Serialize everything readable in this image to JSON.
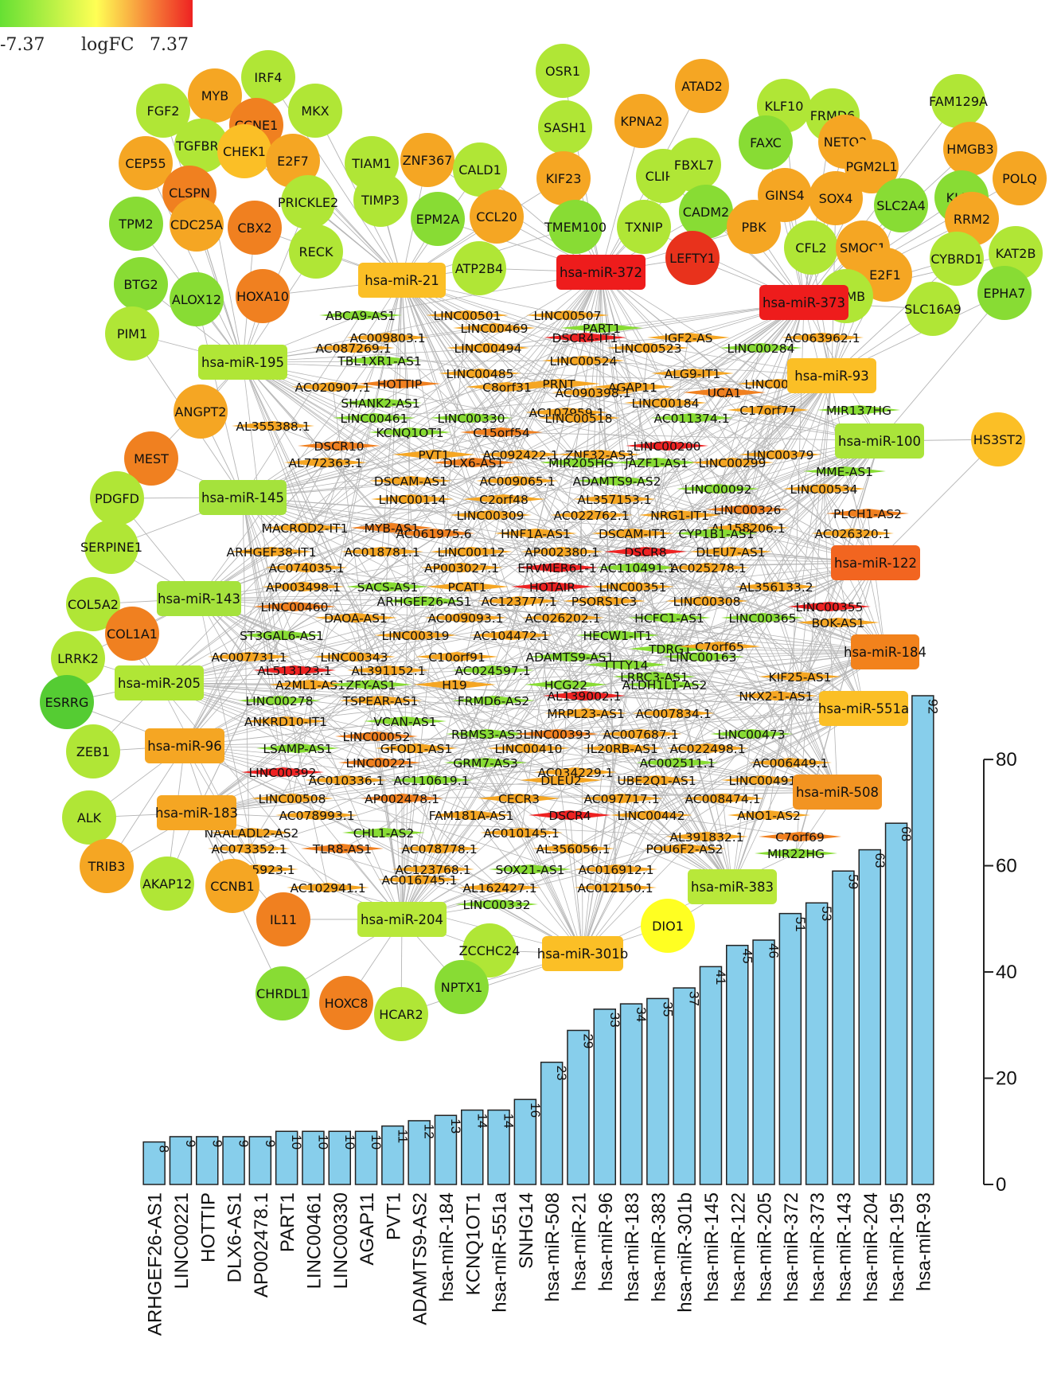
{
  "legend": {
    "min": "-7.37",
    "title": "logFC",
    "max": "7.37",
    "colors": [
      "#66e033",
      "#ffff55",
      "#ee2222"
    ]
  },
  "mirnas": [
    {
      "label": "hsa-miR-21",
      "color": "#fbbf26"
    },
    {
      "label": "hsa-miR-372",
      "color": "#ee1c1c"
    },
    {
      "label": "hsa-miR-373",
      "color": "#ee1c1c"
    },
    {
      "label": "hsa-miR-195",
      "color": "#b0e636"
    },
    {
      "label": "hsa-miR-93",
      "color": "#fbbf26"
    },
    {
      "label": "hsa-miR-100",
      "color": "#aae43a"
    },
    {
      "label": "hsa-miR-145",
      "color": "#a5e23c"
    },
    {
      "label": "hsa-miR-122",
      "color": "#f26520"
    },
    {
      "label": "hsa-miR-143",
      "color": "#a5e23c"
    },
    {
      "label": "hsa-miR-184",
      "color": "#f2821c"
    },
    {
      "label": "hsa-miR-205",
      "color": "#b0e636"
    },
    {
      "label": "hsa-miR-551a",
      "color": "#fbbf26"
    },
    {
      "label": "hsa-miR-96",
      "color": "#f5a623"
    },
    {
      "label": "hsa-miR-508",
      "color": "#f29422"
    },
    {
      "label": "hsa-miR-183",
      "color": "#f5a623"
    },
    {
      "label": "hsa-miR-383",
      "color": "#b8e83a"
    },
    {
      "label": "hsa-miR-204",
      "color": "#b8e83a"
    },
    {
      "label": "hsa-miR-301b",
      "color": "#fbbf26"
    }
  ],
  "genes": [
    {
      "label": "IRF4",
      "color": "#b0e636"
    },
    {
      "label": "MYB",
      "color": "#f5a623"
    },
    {
      "label": "FGF2",
      "color": "#b0e636"
    },
    {
      "label": "MKX",
      "color": "#b0e636"
    },
    {
      "label": "CCNE1",
      "color": "#f08020"
    },
    {
      "label": "TGFBR3",
      "color": "#b0e636"
    },
    {
      "label": "CEP55",
      "color": "#f5a623"
    },
    {
      "label": "CHEK1",
      "color": "#fbbf26"
    },
    {
      "label": "E2F7",
      "color": "#f5a623"
    },
    {
      "label": "CLSPN",
      "color": "#f08020"
    },
    {
      "label": "TPM2",
      "color": "#88dc34"
    },
    {
      "label": "CDC25A",
      "color": "#f5a623"
    },
    {
      "label": "CBX2",
      "color": "#f08020"
    },
    {
      "label": "BTG2",
      "color": "#88dc34"
    },
    {
      "label": "ALOX12",
      "color": "#88dc34"
    },
    {
      "label": "HOXA10",
      "color": "#f08020"
    },
    {
      "label": "PIM1",
      "color": "#b0e636"
    },
    {
      "label": "RECK",
      "color": "#b0e636"
    },
    {
      "label": "PRICKLE2",
      "color": "#b0e636"
    },
    {
      "label": "TIAM1",
      "color": "#b0e636"
    },
    {
      "label": "ZNF367",
      "color": "#f5a623"
    },
    {
      "label": "TIMP3",
      "color": "#b0e636"
    },
    {
      "label": "CALD1",
      "color": "#b0e636"
    },
    {
      "label": "EPM2A",
      "color": "#88dc34"
    },
    {
      "label": "CCL20",
      "color": "#f5a623"
    },
    {
      "label": "ATP2B4",
      "color": "#b0e636"
    },
    {
      "label": "OSR1",
      "color": "#b0e636"
    },
    {
      "label": "SASH1",
      "color": "#b0e636"
    },
    {
      "label": "KIF23",
      "color": "#f5a623"
    },
    {
      "label": "TMEM100",
      "color": "#88dc34"
    },
    {
      "label": "KPNA2",
      "color": "#f5a623"
    },
    {
      "label": "ATAD2",
      "color": "#f5a623"
    },
    {
      "label": "CLIP4",
      "color": "#b0e636"
    },
    {
      "label": "FBXL7",
      "color": "#b0e636"
    },
    {
      "label": "TXNIP",
      "color": "#b0e636"
    },
    {
      "label": "CADM2",
      "color": "#88dc34"
    },
    {
      "label": "LEFTY1",
      "color": "#e8321c"
    },
    {
      "label": "KLF10",
      "color": "#b0e636"
    },
    {
      "label": "FRMD6",
      "color": "#b0e636"
    },
    {
      "label": "FAM129A",
      "color": "#b0e636"
    },
    {
      "label": "FAXC",
      "color": "#88dc34"
    },
    {
      "label": "NETO2",
      "color": "#f5a623"
    },
    {
      "label": "HMGB3",
      "color": "#f5a623"
    },
    {
      "label": "PGM2L1",
      "color": "#f5a623"
    },
    {
      "label": "KLF9",
      "color": "#88dc34"
    },
    {
      "label": "POLQ",
      "color": "#f5a623"
    },
    {
      "label": "GINS4",
      "color": "#f5a623"
    },
    {
      "label": "SOX4",
      "color": "#f5a623"
    },
    {
      "label": "SLC2A4",
      "color": "#88dc34"
    },
    {
      "label": "RRM2",
      "color": "#f5a623"
    },
    {
      "label": "PBK",
      "color": "#f5a623"
    },
    {
      "label": "CFL2",
      "color": "#b0e636"
    },
    {
      "label": "SMOC1",
      "color": "#f5a623"
    },
    {
      "label": "CYBRD1",
      "color": "#b0e636"
    },
    {
      "label": "KAT2B",
      "color": "#b0e636"
    },
    {
      "label": "EPHA7",
      "color": "#88dc34"
    },
    {
      "label": "E2F1",
      "color": "#f5a623"
    },
    {
      "label": "RGMB",
      "color": "#b0e636"
    },
    {
      "label": "SLC16A9",
      "color": "#b0e636"
    },
    {
      "label": "HS3ST2",
      "color": "#fbbf26"
    },
    {
      "label": "ANGPT2",
      "color": "#f5a623"
    },
    {
      "label": "MEST",
      "color": "#f08020"
    },
    {
      "label": "PDGFD",
      "color": "#b0e636"
    },
    {
      "label": "SERPINE1",
      "color": "#b0e636"
    },
    {
      "label": "COL5A2",
      "color": "#b0e636"
    },
    {
      "label": "COL1A1",
      "color": "#f08020"
    },
    {
      "label": "LRRK2",
      "color": "#b0e636"
    },
    {
      "label": "ESRRG",
      "color": "#55cc33"
    },
    {
      "label": "ZEB1",
      "color": "#b0e636"
    },
    {
      "label": "ALK",
      "color": "#b0e636"
    },
    {
      "label": "TRIB3",
      "color": "#f5a623"
    },
    {
      "label": "AKAP12",
      "color": "#b0e636"
    },
    {
      "label": "CCNB1",
      "color": "#f5a623"
    },
    {
      "label": "IL11",
      "color": "#f08020"
    },
    {
      "label": "DIO1",
      "color": "#ffff22"
    },
    {
      "label": "ZCCHC24",
      "color": "#b0e636"
    },
    {
      "label": "CHRDL1",
      "color": "#88dc34"
    },
    {
      "label": "HOXC8",
      "color": "#f08020"
    },
    {
      "label": "HCAR2",
      "color": "#b0e636"
    },
    {
      "label": "NPTX1",
      "color": "#88dc34"
    }
  ],
  "lncrnas": [
    {
      "label": "ABCA9-AS1",
      "color": "#88dc34"
    },
    {
      "label": "LINC00501",
      "color": "#f5a623"
    },
    {
      "label": "LINC00507",
      "color": "#f5a623"
    },
    {
      "label": "LINC00469",
      "color": "#f5a623"
    },
    {
      "label": "PART1",
      "color": "#88dc34"
    },
    {
      "label": "AC009803.1",
      "color": "#f5a623"
    },
    {
      "label": "DSCR4-IT1",
      "color": "#ee2222"
    },
    {
      "label": "IGF2-AS",
      "color": "#f5a623"
    },
    {
      "label": "AC063962.1",
      "color": "#f5a623"
    },
    {
      "label": "AC087269.1",
      "color": "#f5a623"
    },
    {
      "label": "LINC00494",
      "color": "#f5a623"
    },
    {
      "label": "LINC00523",
      "color": "#f5a623"
    },
    {
      "label": "LINC00284",
      "color": "#88dc34"
    },
    {
      "label": "TBL1XR1-AS1",
      "color": "#88dc34"
    },
    {
      "label": "LINC00524",
      "color": "#f5a623"
    },
    {
      "label": "LINC00485",
      "color": "#f5a623"
    },
    {
      "label": "ALG9-IT1",
      "color": "#f5a623"
    },
    {
      "label": "HOTTIP",
      "color": "#f08020"
    },
    {
      "label": "PRNT",
      "color": "#f5a623"
    },
    {
      "label": "LINC00454",
      "color": "#f5a623"
    },
    {
      "label": "AC020907.1",
      "color": "#f5a623"
    },
    {
      "label": "C8orf31",
      "color": "#f5a623"
    },
    {
      "label": "AGAP11",
      "color": "#f5a623"
    },
    {
      "label": "AC090398.1",
      "color": "#f5a623"
    },
    {
      "label": "UCA1",
      "color": "#f08020"
    },
    {
      "label": "SHANK2-AS1",
      "color": "#88dc34"
    },
    {
      "label": "LINC00184",
      "color": "#f5a623"
    },
    {
      "label": "C17orf77",
      "color": "#f5a623"
    },
    {
      "label": "MIR137HG",
      "color": "#88dc34"
    },
    {
      "label": "AC107959.1",
      "color": "#f5a623"
    },
    {
      "label": "LINC00461",
      "color": "#88dc34"
    },
    {
      "label": "LINC00330",
      "color": "#88dc34"
    },
    {
      "label": "LINC00518",
      "color": "#f5a623"
    },
    {
      "label": "AC011374.1",
      "color": "#88dc34"
    },
    {
      "label": "AL355388.1",
      "color": "#f5a623"
    },
    {
      "label": "KCNQ1OT1",
      "color": "#88dc34"
    },
    {
      "label": "C15orf54",
      "color": "#f08020"
    },
    {
      "label": "DSCR10",
      "color": "#f08020"
    },
    {
      "label": "LINC00200",
      "color": "#ee2222"
    },
    {
      "label": "PVT1",
      "color": "#f5a623"
    },
    {
      "label": "AC092422.1",
      "color": "#f5a623"
    },
    {
      "label": "ZNF32-AS3",
      "color": "#f5a623"
    },
    {
      "label": "LINC00379",
      "color": "#f5a623"
    },
    {
      "label": "AL772363.1",
      "color": "#f5a623"
    },
    {
      "label": "DLX6-AS1",
      "color": "#f08020"
    },
    {
      "label": "MIR205HG",
      "color": "#88dc34"
    },
    {
      "label": "JAZF1-AS1",
      "color": "#88dc34"
    },
    {
      "label": "LINC00299",
      "color": "#f5a623"
    },
    {
      "label": "MME-AS1",
      "color": "#88dc34"
    },
    {
      "label": "DSCAM-AS1",
      "color": "#f5a623"
    },
    {
      "label": "AC009065.1",
      "color": "#f5a623"
    },
    {
      "label": "ADAMTS9-AS2",
      "color": "#88dc34"
    },
    {
      "label": "LINC00092",
      "color": "#88dc34"
    },
    {
      "label": "LINC00534",
      "color": "#f5a623"
    },
    {
      "label": "LINC00114",
      "color": "#f5a623"
    },
    {
      "label": "C2orf48",
      "color": "#f5a623"
    },
    {
      "label": "AL357153.1",
      "color": "#f5a623"
    },
    {
      "label": "LINC00326",
      "color": "#f08020"
    },
    {
      "label": "LINC00309",
      "color": "#f5a623"
    },
    {
      "label": "AC022762.1",
      "color": "#f5a623"
    },
    {
      "label": "NRG1-IT1",
      "color": "#f5a623"
    },
    {
      "label": "PLCH1-AS2",
      "color": "#f08020"
    },
    {
      "label": "MACROD2-IT1",
      "color": "#f5a623"
    },
    {
      "label": "MYB-AS1",
      "color": "#f08020"
    },
    {
      "label": "AL158206.1",
      "color": "#f5a623"
    },
    {
      "label": "AC061975.6",
      "color": "#f08020"
    },
    {
      "label": "HNF1A-AS1",
      "color": "#f5a623"
    },
    {
      "label": "DSCAM-IT1",
      "color": "#f5a623"
    },
    {
      "label": "CYP1B1-AS1",
      "color": "#88dc34"
    },
    {
      "label": "AC026320.1",
      "color": "#f5a623"
    },
    {
      "label": "ARHGEF38-IT1",
      "color": "#f5a623"
    },
    {
      "label": "AC018781.1",
      "color": "#f5a623"
    },
    {
      "label": "LINC00112",
      "color": "#f5a623"
    },
    {
      "label": "AP002380.1",
      "color": "#f5a623"
    },
    {
      "label": "DSCR8",
      "color": "#ee2222"
    },
    {
      "label": "DLEU7-AS1",
      "color": "#f5a623"
    },
    {
      "label": "AC074035.1",
      "color": "#f5a623"
    },
    {
      "label": "AP003027.1",
      "color": "#f5a623"
    },
    {
      "label": "ERVMER61-1",
      "color": "#ee2222"
    },
    {
      "label": "AC110491.1",
      "color": "#88dc34"
    },
    {
      "label": "AC025278.1",
      "color": "#f5a623"
    },
    {
      "label": "AP003498.1",
      "color": "#f5a623"
    },
    {
      "label": "SACS-AS1",
      "color": "#88dc34"
    },
    {
      "label": "PCAT1",
      "color": "#f5a623"
    },
    {
      "label": "HOTAIR",
      "color": "#ee2222"
    },
    {
      "label": "LINC00351",
      "color": "#f5a623"
    },
    {
      "label": "AL356133.2",
      "color": "#f5a623"
    },
    {
      "label": "ARHGEF26-AS1",
      "color": "#88dc34"
    },
    {
      "label": "AC123777.1",
      "color": "#f5a623"
    },
    {
      "label": "PSORS1C3",
      "color": "#f5a623"
    },
    {
      "label": "LINC00308",
      "color": "#f5a623"
    },
    {
      "label": "LINC00460",
      "color": "#f08020"
    },
    {
      "label": "LINC00355",
      "color": "#ee2222"
    },
    {
      "label": "DAOA-AS1",
      "color": "#f5a623"
    },
    {
      "label": "AC009093.1",
      "color": "#f5a623"
    },
    {
      "label": "AC026202.1",
      "color": "#f5a623"
    },
    {
      "label": "HCFC1-AS1",
      "color": "#88dc34"
    },
    {
      "label": "LINC00365",
      "color": "#88dc34"
    },
    {
      "label": "BOK-AS1",
      "color": "#f5a623"
    },
    {
      "label": "ST3GAL6-AS1",
      "color": "#88dc34"
    },
    {
      "label": "LINC00319",
      "color": "#f5a623"
    },
    {
      "label": "AC104472.1",
      "color": "#f5a623"
    },
    {
      "label": "HECW1-IT1",
      "color": "#88dc34"
    },
    {
      "label": "TDRG1",
      "color": "#88dc34"
    },
    {
      "label": "C7orf65",
      "color": "#f5a623"
    },
    {
      "label": "AC007731.1",
      "color": "#f5a623"
    },
    {
      "label": "LINC00343",
      "color": "#f5a623"
    },
    {
      "label": "C10orf91",
      "color": "#f5a623"
    },
    {
      "label": "ADAMTS9-AS1",
      "color": "#88dc34"
    },
    {
      "label": "LINC00163",
      "color": "#88dc34"
    },
    {
      "label": "AL513123.1",
      "color": "#ee2222"
    },
    {
      "label": "AL391152.1",
      "color": "#f5a623"
    },
    {
      "label": "AC024597.1",
      "color": "#88dc34"
    },
    {
      "label": "TTTY14",
      "color": "#88dc34"
    },
    {
      "label": "LRRC3-AS1",
      "color": "#88dc34"
    },
    {
      "label": "AL139002.1",
      "color": "#ee2222"
    },
    {
      "label": "KIF25-AS1",
      "color": "#f5a623"
    },
    {
      "label": "A2ML1-AS1",
      "color": "#f5a623"
    },
    {
      "label": "ZFY-AS1",
      "color": "#88dc34"
    },
    {
      "label": "H19",
      "color": "#f5a623"
    },
    {
      "label": "HCG22",
      "color": "#88dc34"
    },
    {
      "label": "ALDH1L1-AS2",
      "color": "#88dc34"
    },
    {
      "label": "NKX2-1-AS1",
      "color": "#f5a623"
    },
    {
      "label": "LINC00278",
      "color": "#88dc34"
    },
    {
      "label": "TSPEAR-AS1",
      "color": "#f5a623"
    },
    {
      "label": "FRMD6-AS2",
      "color": "#88dc34"
    },
    {
      "label": "MRPL23-AS1",
      "color": "#f5a623"
    },
    {
      "label": "AC007834.1",
      "color": "#f5a623"
    },
    {
      "label": "VCAN-AS1",
      "color": "#88dc34"
    },
    {
      "label": "ANKRD10-IT1",
      "color": "#f5a623"
    },
    {
      "label": "RBMS3-AS3",
      "color": "#88dc34"
    },
    {
      "label": "LINC00393",
      "color": "#f08020"
    },
    {
      "label": "AC007687.1",
      "color": "#f5a623"
    },
    {
      "label": "LINC00473",
      "color": "#88dc34"
    },
    {
      "label": "LINC00052",
      "color": "#f08020"
    },
    {
      "label": "LSAMP-AS1",
      "color": "#88dc34"
    },
    {
      "label": "GFOD1-AS1",
      "color": "#f5a623"
    },
    {
      "label": "LINC00410",
      "color": "#f5a623"
    },
    {
      "label": "IL20RB-AS1",
      "color": "#f5a623"
    },
    {
      "label": "AC022498.1",
      "color": "#f5a623"
    },
    {
      "label": "LINC00221",
      "color": "#f08020"
    },
    {
      "label": "GRM7-AS3",
      "color": "#88dc34"
    },
    {
      "label": "AC002511.1",
      "color": "#88dc34"
    },
    {
      "label": "AC006449.1",
      "color": "#f5a623"
    },
    {
      "label": "LINC00392",
      "color": "#ee2222"
    },
    {
      "label": "AC034229.1",
      "color": "#f5a623"
    },
    {
      "label": "AC010336.1",
      "color": "#f5a623"
    },
    {
      "label": "AC110619.1",
      "color": "#88dc34"
    },
    {
      "label": "DLEU2",
      "color": "#f5a623"
    },
    {
      "label": "UBE2Q1-AS1",
      "color": "#f5a623"
    },
    {
      "label": "LINC00491",
      "color": "#f5a623"
    },
    {
      "label": "LINC00508",
      "color": "#f5a623"
    },
    {
      "label": "AP002478.1",
      "color": "#f08020"
    },
    {
      "label": "CECR3",
      "color": "#f5a623"
    },
    {
      "label": "AC097717.1",
      "color": "#f5a623"
    },
    {
      "label": "AC008474.1",
      "color": "#f5a623"
    },
    {
      "label": "AC078993.1",
      "color": "#f5a623"
    },
    {
      "label": "FAM181A-AS1",
      "color": "#f5a623"
    },
    {
      "label": "DSCR4",
      "color": "#ee2222"
    },
    {
      "label": "LINC00442",
      "color": "#f5a623"
    },
    {
      "label": "ANO1-AS2",
      "color": "#f5a623"
    },
    {
      "label": "NAALADL2-AS2",
      "color": "#f5a623"
    },
    {
      "label": "CHL1-AS2",
      "color": "#88dc34"
    },
    {
      "label": "AC010145.1",
      "color": "#f5a623"
    },
    {
      "label": "AL391832.1",
      "color": "#f5a623"
    },
    {
      "label": "C7orf69",
      "color": "#f08020"
    },
    {
      "label": "AC073352.1",
      "color": "#f5a623"
    },
    {
      "label": "TLR8-AS1",
      "color": "#f08020"
    },
    {
      "label": "AC078778.1",
      "color": "#f5a623"
    },
    {
      "label": "AL356056.1",
      "color": "#f5a623"
    },
    {
      "label": "POU6F2-AS2",
      "color": "#f5a623"
    },
    {
      "label": "MIR22HG",
      "color": "#88dc34"
    },
    {
      "label": "BX255923.1",
      "color": "#f5a623"
    },
    {
      "label": "AC123768.1",
      "color": "#f5a623"
    },
    {
      "label": "SOX21-AS1",
      "color": "#88dc34"
    },
    {
      "label": "AC016912.1",
      "color": "#f5a623"
    },
    {
      "label": "AC102941.1",
      "color": "#f5a623"
    },
    {
      "label": "AC016745.1",
      "color": "#f5a623"
    },
    {
      "label": "AL162427.1",
      "color": "#f5a623"
    },
    {
      "label": "AC012150.1",
      "color": "#f5a623"
    },
    {
      "label": "LINC00332",
      "color": "#88dc34"
    }
  ],
  "chart_data": {
    "type": "bar",
    "categories": [
      "ARHGEF26-AS1",
      "LINC00221",
      "HOTTIP",
      "DLX6-AS1",
      "AP002478.1",
      "PART1",
      "LINC00461",
      "LINC00330",
      "AGAP11",
      "PVT1",
      "ADAMTS9-AS2",
      "hsa-miR-184",
      "KCNQ1OT1",
      "hsa-miR-551a",
      "SNHG14",
      "hsa-miR-508",
      "hsa-miR-21",
      "hsa-miR-96",
      "hsa-miR-183",
      "hsa-miR-383",
      "hsa-miR-301b",
      "hsa-miR-145",
      "hsa-miR-122",
      "hsa-miR-205",
      "hsa-miR-372",
      "hsa-miR-373",
      "hsa-miR-143",
      "hsa-miR-204",
      "hsa-miR-195",
      "hsa-miR-93"
    ],
    "values": [
      8,
      9,
      9,
      9,
      9,
      10,
      10,
      10,
      10,
      11,
      12,
      13,
      14,
      14,
      16,
      23,
      29,
      33,
      34,
      35,
      37,
      41,
      45,
      46,
      51,
      53,
      59,
      63,
      68,
      92
    ],
    "ticks": [
      "0",
      "20",
      "40",
      "60",
      "80"
    ],
    "ylim": [
      0,
      92
    ],
    "bar_color": "#87ceeb",
    "grid": false,
    "axis_side": "right"
  }
}
